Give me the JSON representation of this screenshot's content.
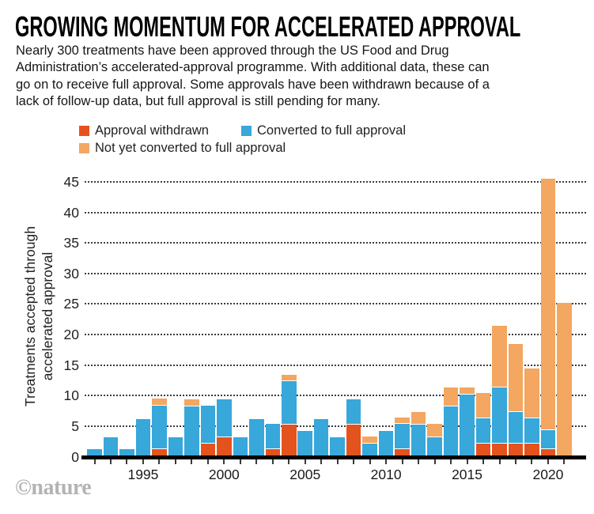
{
  "header": {
    "title": "GROWING MOMENTUM FOR ACCELERATED APPROVAL",
    "subtitle": "Nearly 300 treatments have been approved through the US Food and Drug\nAdministration’s accelerated-approval programme. With additional data, these can\ngo on to receive full approval. Some approvals have been withdrawn because of a\nlack of follow-up data, but full approval is still pending for many."
  },
  "legend": {
    "items": [
      {
        "label": "Approval withdrawn",
        "color": "#e4521e"
      },
      {
        "label": "Converted to full approval",
        "color": "#38a7da"
      },
      {
        "label": "Not yet converted to full approval",
        "color": "#f3a761"
      }
    ]
  },
  "watermark": "©nature",
  "colors": {
    "withdrawn": "#e4521e",
    "converted": "#38a7da",
    "not_yet_converted": "#f3a761",
    "axis": "#000000",
    "grid": "#3c3c3c",
    "text": "#222222",
    "watermark_gray": "#b3b3b3"
  },
  "chart_data": {
    "type": "bar",
    "stacked": true,
    "title": "GROWING MOMENTUM FOR ACCELERATED APPROVAL",
    "xlabel": "",
    "ylabel": "Treatments accepted through\naccelerated approval",
    "ylim": [
      0,
      45
    ],
    "yticks": [
      0,
      5,
      10,
      15,
      20,
      25,
      30,
      35,
      40,
      45
    ],
    "xticks_labeled": [
      1995,
      2000,
      2005,
      2010,
      2015,
      2020
    ],
    "grid": "horizontal-dotted",
    "legend_position": "top",
    "categories": [
      1992,
      1993,
      1994,
      1995,
      1996,
      1997,
      1998,
      1999,
      2000,
      2001,
      2002,
      2003,
      2004,
      2005,
      2006,
      2007,
      2008,
      2009,
      2010,
      2011,
      2012,
      2013,
      2014,
      2015,
      2016,
      2017,
      2018,
      2019,
      2020,
      2021
    ],
    "series": [
      {
        "name": "Approval withdrawn",
        "color": "#e4521e",
        "values": [
          0,
          0,
          0,
          0,
          1,
          0,
          0,
          2,
          3,
          0,
          0,
          1,
          5,
          0,
          0,
          0,
          5,
          0,
          0,
          1,
          0,
          0,
          0,
          0,
          2,
          2,
          2,
          2,
          1,
          0
        ]
      },
      {
        "name": "Converted to full approval",
        "color": "#38a7da",
        "values": [
          1,
          3,
          1,
          6,
          7,
          3,
          8,
          6,
          6,
          3,
          6,
          4,
          7,
          4,
          6,
          3,
          4,
          2,
          4,
          4,
          5,
          3,
          8,
          10,
          4,
          9,
          5,
          4,
          3,
          0
        ]
      },
      {
        "name": "Not yet converted to full approval",
        "color": "#f3a761",
        "values": [
          0,
          0,
          0,
          0,
          1,
          0,
          1,
          0,
          0,
          0,
          0,
          0,
          1,
          0,
          0,
          0,
          0,
          1,
          0,
          1,
          2,
          2,
          3,
          1,
          4,
          10,
          11,
          8,
          41,
          25
        ]
      }
    ],
    "totals": [
      1,
      3,
      1,
      6,
      9,
      3,
      9,
      8,
      9,
      3,
      6,
      5,
      13,
      4,
      6,
      3,
      9,
      3,
      4,
      6,
      7,
      5,
      11,
      11,
      10,
      21,
      18,
      14,
      45,
      25
    ]
  }
}
